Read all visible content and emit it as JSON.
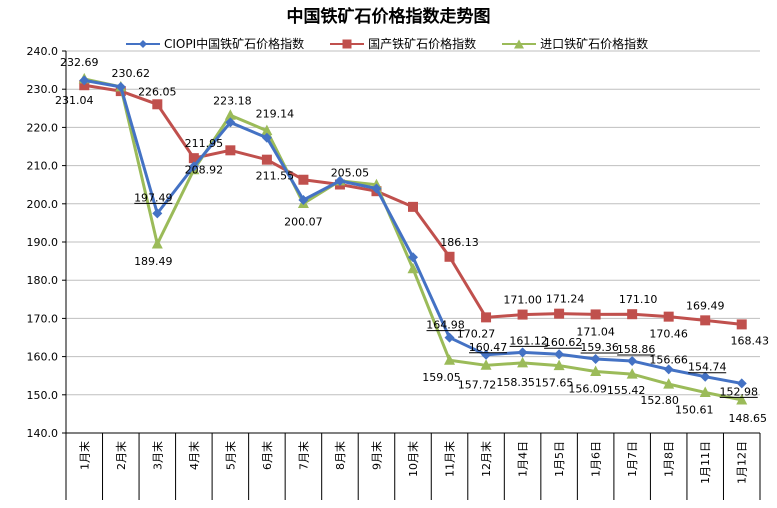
{
  "chart_data": {
    "type": "line",
    "title": "中国铁矿石价格指数走势图",
    "categories": [
      "1月末",
      "2月末",
      "3月末",
      "4月末",
      "5月末",
      "6月末",
      "7月末",
      "8月末",
      "9月末",
      "10月末",
      "11月末",
      "12月末",
      "1月4日",
      "1月5日",
      "1月6日",
      "1月7日",
      "1月8日",
      "1月11日",
      "1月12日"
    ],
    "ylim": [
      140,
      240
    ],
    "yticks": [
      "140.0",
      "150.0",
      "160.0",
      "170.0",
      "180.0",
      "190.0",
      "200.0",
      "210.0",
      "220.0",
      "230.0",
      "240.0"
    ],
    "grid": true,
    "legend_position": "top",
    "series": [
      {
        "name": "CIOPI中国铁矿石价格指数",
        "color": "#4472C4",
        "marker": "diamond",
        "values": [
          232.3,
          230.6,
          197.49,
          209.8,
          221.3,
          217.3,
          201.0,
          206.0,
          204.0,
          186.0,
          164.98,
          160.47,
          161.12,
          160.62,
          159.36,
          158.86,
          156.66,
          154.74,
          152.98
        ],
        "labels": [
          "",
          "",
          "197.49",
          "",
          "",
          "",
          "",
          "",
          "",
          "",
          "164.98",
          "160.47",
          "161.12",
          "160.62",
          "159.36",
          "158.86",
          "156.66",
          "154.74",
          "152.98"
        ]
      },
      {
        "name": "国产铁矿石价格指数",
        "color": "#C0504D",
        "marker": "square",
        "values": [
          231.04,
          229.5,
          226.05,
          211.95,
          214.0,
          211.55,
          206.3,
          205.05,
          203.3,
          199.2,
          186.13,
          170.27,
          171.0,
          171.24,
          171.04,
          171.1,
          170.46,
          169.49,
          168.43
        ],
        "labels": [
          "231.04",
          "",
          "226.05",
          "211.95",
          "",
          "211.55",
          "",
          "205.05",
          "",
          "",
          "186.13",
          "170.27",
          "171.00",
          "171.24",
          "171.04",
          "171.10",
          "170.46",
          "169.49",
          "168.43"
        ]
      },
      {
        "name": "进口铁矿石价格指数",
        "color": "#9BBB59",
        "marker": "triangle",
        "values": [
          232.69,
          230.62,
          189.49,
          208.92,
          223.18,
          219.14,
          200.07,
          206.0,
          205.0,
          183.0,
          159.05,
          157.72,
          158.35,
          157.65,
          156.09,
          155.42,
          152.8,
          150.61,
          148.65
        ],
        "labels": [
          "232.69",
          "230.62",
          "189.49",
          "208.92",
          "223.18",
          "219.14",
          "200.07",
          "",
          "",
          "",
          "159.05",
          "157.72",
          "158.35",
          "157.65",
          "156.09",
          "155.42",
          "152.80",
          "150.61",
          "148.65"
        ]
      }
    ]
  }
}
